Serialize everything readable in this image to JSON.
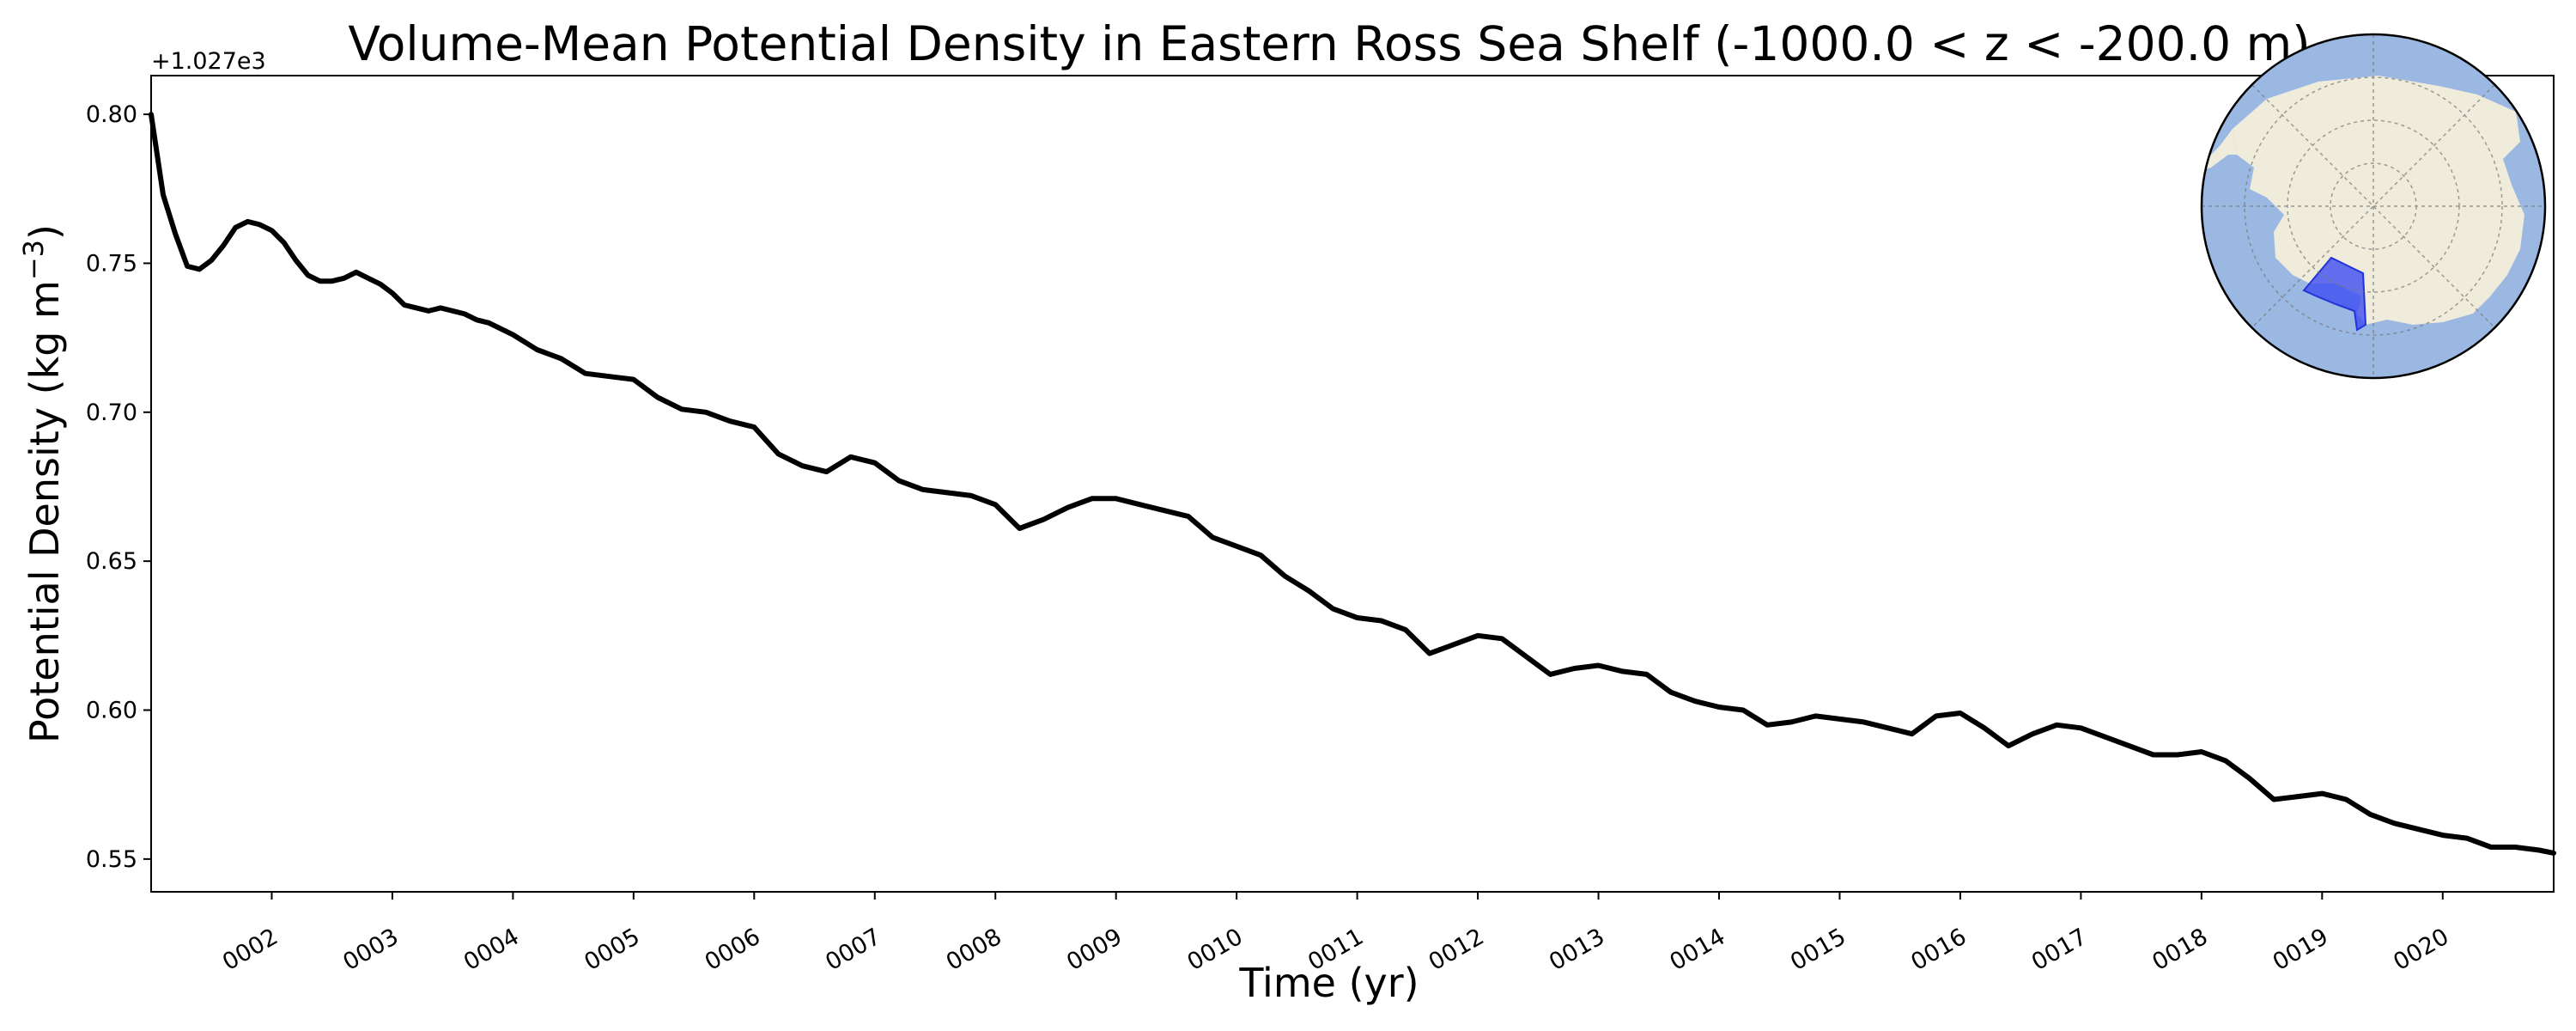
{
  "chart_data": {
    "type": "line",
    "title": "Volume-Mean Potential Density in Eastern Ross Sea Shelf (-1000.0 < z < -200.0 m)",
    "xlabel": "Time (yr)",
    "ylabel_main": "Potential Density (kg m",
    "ylabel_exponent": "−3",
    "ylabel_close": ")",
    "y_offset_label": "+1.027e3",
    "y_offset": 1027.0,
    "xlim": [
      1.0,
      20.92
    ],
    "ylim": [
      0.539,
      0.813
    ],
    "grid": false,
    "x_ticks": [
      {
        "value": 2,
        "label": "0002"
      },
      {
        "value": 3,
        "label": "0003"
      },
      {
        "value": 4,
        "label": "0004"
      },
      {
        "value": 5,
        "label": "0005"
      },
      {
        "value": 6,
        "label": "0006"
      },
      {
        "value": 7,
        "label": "0007"
      },
      {
        "value": 8,
        "label": "0008"
      },
      {
        "value": 9,
        "label": "0009"
      },
      {
        "value": 10,
        "label": "0010"
      },
      {
        "value": 11,
        "label": "0011"
      },
      {
        "value": 12,
        "label": "0012"
      },
      {
        "value": 13,
        "label": "0013"
      },
      {
        "value": 14,
        "label": "0014"
      },
      {
        "value": 15,
        "label": "0015"
      },
      {
        "value": 16,
        "label": "0016"
      },
      {
        "value": 17,
        "label": "0017"
      },
      {
        "value": 18,
        "label": "0018"
      },
      {
        "value": 19,
        "label": "0019"
      },
      {
        "value": 20,
        "label": "0020"
      }
    ],
    "y_ticks": [
      {
        "value": 0.55,
        "label": "0.55"
      },
      {
        "value": 0.6,
        "label": "0.60"
      },
      {
        "value": 0.65,
        "label": "0.65"
      },
      {
        "value": 0.7,
        "label": "0.70"
      },
      {
        "value": 0.75,
        "label": "0.75"
      },
      {
        "value": 0.8,
        "label": "0.80"
      }
    ],
    "series": [
      {
        "color": "#000000",
        "x": [
          1.0,
          1.1,
          1.2,
          1.3,
          1.4,
          1.5,
          1.6,
          1.7,
          1.8,
          1.9,
          2.0,
          2.1,
          2.2,
          2.3,
          2.4,
          2.5,
          2.6,
          2.7,
          2.8,
          2.9,
          3.0,
          3.1,
          3.2,
          3.3,
          3.4,
          3.5,
          3.6,
          3.7,
          3.8,
          3.9,
          4.0,
          4.2,
          4.4,
          4.6,
          4.8,
          5.0,
          5.2,
          5.4,
          5.6,
          5.8,
          6.0,
          6.2,
          6.4,
          6.6,
          6.8,
          7.0,
          7.2,
          7.4,
          7.6,
          7.8,
          8.0,
          8.2,
          8.4,
          8.6,
          8.8,
          9.0,
          9.2,
          9.4,
          9.6,
          9.8,
          10.0,
          10.2,
          10.4,
          10.6,
          10.8,
          11.0,
          11.2,
          11.4,
          11.6,
          11.8,
          12.0,
          12.2,
          12.4,
          12.6,
          12.8,
          13.0,
          13.2,
          13.4,
          13.6,
          13.8,
          14.0,
          14.2,
          14.4,
          14.6,
          14.8,
          15.0,
          15.2,
          15.4,
          15.6,
          15.8,
          16.0,
          16.2,
          16.4,
          16.6,
          16.8,
          17.0,
          17.2,
          17.4,
          17.6,
          17.8,
          18.0,
          18.2,
          18.4,
          18.6,
          18.8,
          19.0,
          19.2,
          19.4,
          19.6,
          19.8,
          20.0,
          20.2,
          20.4,
          20.6,
          20.8,
          20.92
        ],
        "y": [
          0.8,
          0.773,
          0.76,
          0.749,
          0.748,
          0.751,
          0.756,
          0.762,
          0.764,
          0.763,
          0.761,
          0.757,
          0.751,
          0.746,
          0.744,
          0.744,
          0.745,
          0.747,
          0.745,
          0.743,
          0.74,
          0.736,
          0.735,
          0.734,
          0.735,
          0.734,
          0.733,
          0.731,
          0.73,
          0.728,
          0.726,
          0.721,
          0.718,
          0.713,
          0.712,
          0.711,
          0.705,
          0.701,
          0.7,
          0.697,
          0.695,
          0.686,
          0.682,
          0.68,
          0.685,
          0.683,
          0.677,
          0.674,
          0.673,
          0.672,
          0.669,
          0.661,
          0.664,
          0.668,
          0.671,
          0.671,
          0.669,
          0.667,
          0.665,
          0.658,
          0.655,
          0.652,
          0.645,
          0.64,
          0.634,
          0.631,
          0.63,
          0.627,
          0.619,
          0.622,
          0.625,
          0.624,
          0.618,
          0.612,
          0.614,
          0.615,
          0.613,
          0.612,
          0.606,
          0.603,
          0.601,
          0.6,
          0.595,
          0.596,
          0.598,
          0.597,
          0.596,
          0.594,
          0.592,
          0.598,
          0.599,
          0.594,
          0.588,
          0.592,
          0.595,
          0.594,
          0.591,
          0.588,
          0.585,
          0.585,
          0.586,
          0.583,
          0.577,
          0.57,
          0.571,
          0.572,
          0.57,
          0.565,
          0.562,
          0.56,
          0.558,
          0.557,
          0.554,
          0.554,
          0.553,
          0.552
        ]
      }
    ]
  },
  "inset_map": {
    "ocean_color": "#9bb8e3",
    "land_color": "#efecdc",
    "region_color": "#3d4ef0"
  }
}
